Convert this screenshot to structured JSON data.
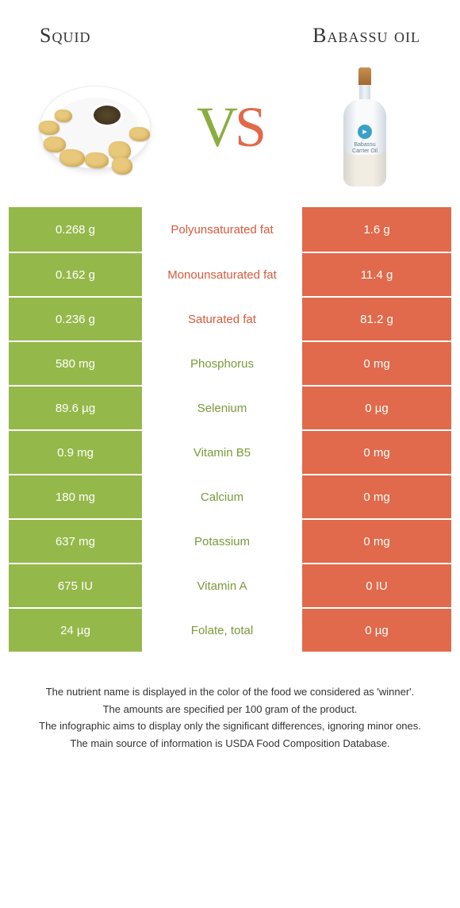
{
  "colors": {
    "green": "#95b84a",
    "green_text": "#7a9a3a",
    "orange": "#e06a4b",
    "orange_text": "#d85a3b",
    "mid_bg": "#ffffff",
    "row_border": "#ffffff"
  },
  "header": {
    "left_title": "Squid",
    "right_title": "Babassu oil"
  },
  "vs": {
    "v": "V",
    "s": "S"
  },
  "bottle": {
    "line1": "Babassu",
    "line2": "Carrier Oil"
  },
  "rows": [
    {
      "left": "0.268 g",
      "label": "Polyunsaturated fat",
      "right": "1.6 g",
      "winner": "right"
    },
    {
      "left": "0.162 g",
      "label": "Monounsaturated fat",
      "right": "11.4 g",
      "winner": "right"
    },
    {
      "left": "0.236 g",
      "label": "Saturated fat",
      "right": "81.2 g",
      "winner": "right"
    },
    {
      "left": "580 mg",
      "label": "Phosphorus",
      "right": "0 mg",
      "winner": "left"
    },
    {
      "left": "89.6 µg",
      "label": "Selenium",
      "right": "0 µg",
      "winner": "left"
    },
    {
      "left": "0.9 mg",
      "label": "Vitamin B5",
      "right": "0 mg",
      "winner": "left"
    },
    {
      "left": "180 mg",
      "label": "Calcium",
      "right": "0 mg",
      "winner": "left"
    },
    {
      "left": "637 mg",
      "label": "Potassium",
      "right": "0 mg",
      "winner": "left"
    },
    {
      "left": "675 IU",
      "label": "Vitamin A",
      "right": "0 IU",
      "winner": "left"
    },
    {
      "left": "24 µg",
      "label": "Folate, total",
      "right": "0 µg",
      "winner": "left"
    }
  ],
  "footnotes": [
    "The nutrient name is displayed in the color of the food we considered as 'winner'.",
    "The amounts are specified per 100 gram of the product.",
    "The infographic aims to display only the significant differences, ignoring minor ones.",
    "The main source of information is USDA Food Composition Database."
  ]
}
